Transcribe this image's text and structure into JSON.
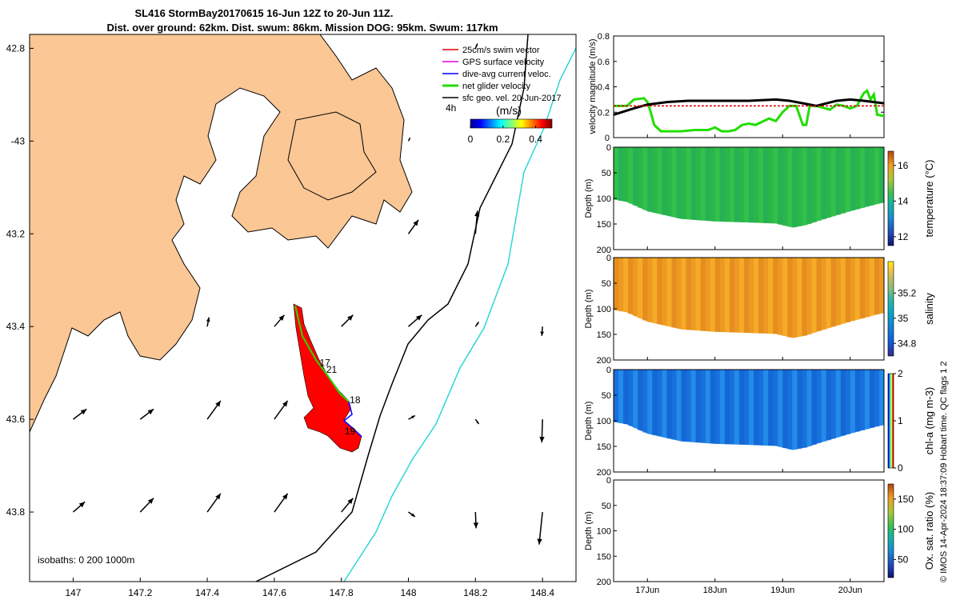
{
  "title": {
    "line1": "SL416 StormBay20170615 16-Jun 12Z to 20-Jun 11Z.",
    "line2": "Dist. over ground: 62km. Dist. swum: 86km. Mission DOG: 95km. Swum: 117km"
  },
  "colors": {
    "land": "#fac795",
    "track": "#ff0000",
    "contour_200": "#000000",
    "contour_1000": "#2fd6d6",
    "swim_vector": "#e00000",
    "gps_velocity": "#e000e0",
    "dive_avg": "#0000ff",
    "net_velocity": "#22dd00",
    "sfc_geo": "#000000"
  },
  "map": {
    "xlim": [
      146.87,
      148.5
    ],
    "ylim": [
      -43.95,
      -42.77
    ],
    "x_ticks": [
      147,
      147.2,
      147.4,
      147.6,
      147.8,
      148,
      148.2,
      148.4
    ],
    "x_tick_labels": [
      "147",
      "147.2",
      "147.4",
      "147.6",
      "147.8",
      "148",
      "148.2",
      "148.4"
    ],
    "y_ticks": [
      -42.8,
      -43,
      -43.2,
      -43.4,
      -43.6,
      -43.8
    ],
    "y_tick_labels": [
      "42.8",
      "-43",
      "43.2",
      "43.4",
      "43.6",
      "43.8"
    ],
    "isobaths_label": "isobaths: 0   200  1000m",
    "time_label": "4h",
    "day_labels": [
      {
        "text": "17",
        "lon": 147.735,
        "lat": -43.485
      },
      {
        "text": "21",
        "lon": 147.755,
        "lat": -43.5
      },
      {
        "text": "18",
        "lon": 147.825,
        "lat": -43.565
      },
      {
        "text": "19",
        "lon": 147.81,
        "lat": -43.633
      }
    ],
    "legend": [
      {
        "label": "25cm/s swim vector",
        "color_key": "swim_vector"
      },
      {
        "label": "GPS surface velocity",
        "color_key": "gps_velocity"
      },
      {
        "label": "dive-avg current veloc.",
        "color_key": "dive_avg"
      },
      {
        "label": "net glider velocity",
        "color_key": "net_velocity"
      },
      {
        "label": "sfc geo. vel. 20-Jun-2017",
        "color_key": "sfc_geo"
      }
    ],
    "colorbar": {
      "label": "(m/s)",
      "ticks": [
        0,
        0.2,
        0.4
      ],
      "tick_labels": [
        "0",
        "0.2",
        "0.4"
      ],
      "range": [
        0,
        0.5
      ]
    },
    "vectors": [
      {
        "lon": 147.0,
        "lat": -43.6,
        "u": 0.04,
        "v": 0.022
      },
      {
        "lon": 147.2,
        "lat": -43.6,
        "u": 0.04,
        "v": 0.022
      },
      {
        "lon": 147.4,
        "lat": -43.6,
        "u": 0.04,
        "v": 0.04
      },
      {
        "lon": 147.6,
        "lat": -43.6,
        "u": 0.04,
        "v": 0.04
      },
      {
        "lon": 148.0,
        "lat": -43.6,
        "u": 0.02,
        "v": 0.008
      },
      {
        "lon": 148.2,
        "lat": -43.6,
        "u": 0.01,
        "v": -0.01
      },
      {
        "lon": 148.4,
        "lat": -43.6,
        "u": -0.002,
        "v": -0.05
      },
      {
        "lon": 147.4,
        "lat": -43.4,
        "u": 0.005,
        "v": 0.02
      },
      {
        "lon": 147.6,
        "lat": -43.4,
        "u": 0.03,
        "v": 0.025
      },
      {
        "lon": 147.8,
        "lat": -43.4,
        "u": 0.035,
        "v": 0.025
      },
      {
        "lon": 148.0,
        "lat": -43.4,
        "u": 0.04,
        "v": 0.025
      },
      {
        "lon": 148.2,
        "lat": -43.4,
        "u": 0.01,
        "v": 0.01
      },
      {
        "lon": 148.4,
        "lat": -43.4,
        "u": -0.002,
        "v": -0.02
      },
      {
        "lon": 148.0,
        "lat": -43.2,
        "u": 0.03,
        "v": 0.03
      },
      {
        "lon": 148.2,
        "lat": -43.2,
        "u": 0.006,
        "v": 0.05
      },
      {
        "lon": 148.0,
        "lat": -43.0,
        "u": 0.005,
        "v": 0.007
      },
      {
        "lon": 148.2,
        "lat": -42.8,
        "u": 0.006,
        "v": 0.01
      },
      {
        "lon": 147.0,
        "lat": -43.8,
        "u": 0.035,
        "v": 0.022
      },
      {
        "lon": 147.2,
        "lat": -43.8,
        "u": 0.04,
        "v": 0.03
      },
      {
        "lon": 147.4,
        "lat": -43.8,
        "u": 0.04,
        "v": 0.04
      },
      {
        "lon": 147.6,
        "lat": -43.8,
        "u": 0.04,
        "v": 0.04
      },
      {
        "lon": 147.8,
        "lat": -43.8,
        "u": 0.035,
        "v": 0.03
      },
      {
        "lon": 148.0,
        "lat": -43.8,
        "u": 0.02,
        "v": -0.01
      },
      {
        "lon": 148.2,
        "lat": -43.8,
        "u": 0.002,
        "v": -0.035
      },
      {
        "lon": 148.4,
        "lat": -43.8,
        "u": -0.01,
        "v": -0.07
      }
    ]
  },
  "chart_data": [
    {
      "type": "line",
      "name": "velocity",
      "ylabel": "velocity magnitude (m/s)",
      "ylim": [
        0,
        0.8
      ],
      "y_ticks": [
        0,
        0.2,
        0.4,
        0.6,
        0.8
      ],
      "y_tick_labels": [
        "0",
        "0.2",
        "0.4",
        "0.6",
        "0.8"
      ],
      "xlim": [
        16.5,
        20.5
      ],
      "series": [
        {
          "name": "net glider velocity",
          "color_key": "net_velocity",
          "x": [
            16.5,
            16.7,
            16.8,
            16.95,
            17.0,
            17.05,
            17.1,
            17.2,
            17.3,
            17.5,
            17.7,
            17.9,
            18.0,
            18.1,
            18.2,
            18.3,
            18.4,
            18.5,
            18.6,
            18.8,
            18.9,
            19.0,
            19.1,
            19.2,
            19.3,
            19.35,
            19.4,
            19.5,
            19.7,
            19.8,
            19.9,
            20.0,
            20.1,
            20.2,
            20.25,
            20.3,
            20.35,
            20.4,
            20.5
          ],
          "y": [
            0.25,
            0.25,
            0.3,
            0.31,
            0.28,
            0.2,
            0.1,
            0.05,
            0.05,
            0.05,
            0.06,
            0.06,
            0.08,
            0.05,
            0.05,
            0.06,
            0.1,
            0.11,
            0.1,
            0.15,
            0.13,
            0.2,
            0.25,
            0.25,
            0.1,
            0.1,
            0.25,
            0.25,
            0.22,
            0.26,
            0.25,
            0.23,
            0.25,
            0.35,
            0.37,
            0.3,
            0.34,
            0.18,
            0.17
          ]
        },
        {
          "name": "sfc geo. vel.",
          "color_key": "sfc_geo",
          "x": [
            16.5,
            16.8,
            17.0,
            17.3,
            17.6,
            18.0,
            18.5,
            18.9,
            19.1,
            19.3,
            19.5,
            19.8,
            20.0,
            20.2,
            20.5
          ],
          "y": [
            0.18,
            0.23,
            0.26,
            0.28,
            0.29,
            0.29,
            0.29,
            0.3,
            0.29,
            0.27,
            0.25,
            0.29,
            0.3,
            0.29,
            0.27
          ]
        },
        {
          "name": "25cm/s swim vector",
          "color_key": "swim_vector",
          "x": [
            16.5,
            20.5
          ],
          "y": [
            0.25,
            0.25
          ]
        }
      ]
    },
    {
      "type": "heatmap",
      "name": "temperature",
      "ylabel": "Depth (m)",
      "colorbar_label": "temperature (°C)",
      "ylim": [
        0,
        200
      ],
      "y_ticks": [
        0,
        50,
        100,
        150,
        200
      ],
      "y_tick_labels": [
        "0",
        "50",
        "100",
        "150",
        "200"
      ],
      "color_range": [
        11.5,
        16.8
      ],
      "colorbar_ticks": [
        12,
        14,
        16
      ],
      "colorbar_tick_labels": [
        "12",
        "14",
        "16"
      ],
      "typical_value": 14.3
    },
    {
      "type": "heatmap",
      "name": "salinity",
      "ylabel": "Depth (m)",
      "colorbar_label": "salinity",
      "ylim": [
        0,
        200
      ],
      "y_ticks": [
        0,
        50,
        100,
        150,
        200
      ],
      "y_tick_labels": [
        "0",
        "50",
        "100",
        "150",
        "200"
      ],
      "color_range": [
        34.7,
        35.45
      ],
      "colorbar_ticks": [
        34.8,
        35,
        35.2
      ],
      "colorbar_tick_labels": [
        "34.8",
        "35",
        "35.2"
      ],
      "typical_value": 35.25
    },
    {
      "type": "heatmap",
      "name": "chl-a",
      "ylabel": "Depth (m)",
      "colorbar_label": "chl-a (mg m-3)",
      "ylim": [
        0,
        200
      ],
      "y_ticks": [
        0,
        50,
        100,
        150,
        200
      ],
      "y_tick_labels": [
        "0",
        "50",
        "100",
        "150",
        "200"
      ],
      "color_range": [
        0,
        2
      ],
      "colorbar_ticks": [
        0,
        1,
        2
      ],
      "colorbar_tick_labels": [
        "0",
        "1",
        "2"
      ],
      "typical_value": 0.45
    },
    {
      "type": "heatmap",
      "name": "oxygen",
      "ylabel": "Depth (m)",
      "colorbar_label": "Ox. sat. ratio (%)",
      "ylim": [
        0,
        200
      ],
      "y_ticks": [
        0,
        50,
        100,
        150,
        200
      ],
      "y_tick_labels": [
        "0",
        "50",
        "100",
        "150",
        "200"
      ],
      "color_range": [
        20,
        175
      ],
      "colorbar_ticks": [
        50,
        100,
        150
      ],
      "colorbar_tick_labels": [
        "50",
        "100",
        "150"
      ],
      "empty": true
    }
  ],
  "timeseries": {
    "xlim": [
      16.5,
      20.5
    ],
    "x_ticks": [
      17,
      18,
      19,
      20
    ],
    "x_tick_labels": [
      "17Jun",
      "18Jun",
      "19Jun",
      "20Jun"
    ],
    "bottom_depth": [
      [
        16.5,
        102
      ],
      [
        16.7,
        107
      ],
      [
        17.0,
        125
      ],
      [
        17.5,
        140
      ],
      [
        18.0,
        145
      ],
      [
        18.5,
        147
      ],
      [
        18.9,
        149
      ],
      [
        19.15,
        157
      ],
      [
        19.35,
        152
      ],
      [
        19.55,
        143
      ],
      [
        20.0,
        125
      ],
      [
        20.4,
        111
      ],
      [
        20.5,
        108
      ]
    ]
  },
  "footer": "© IMOS 14-Apr-2024 18:37:09 Hobart time. QC flags 1  2"
}
